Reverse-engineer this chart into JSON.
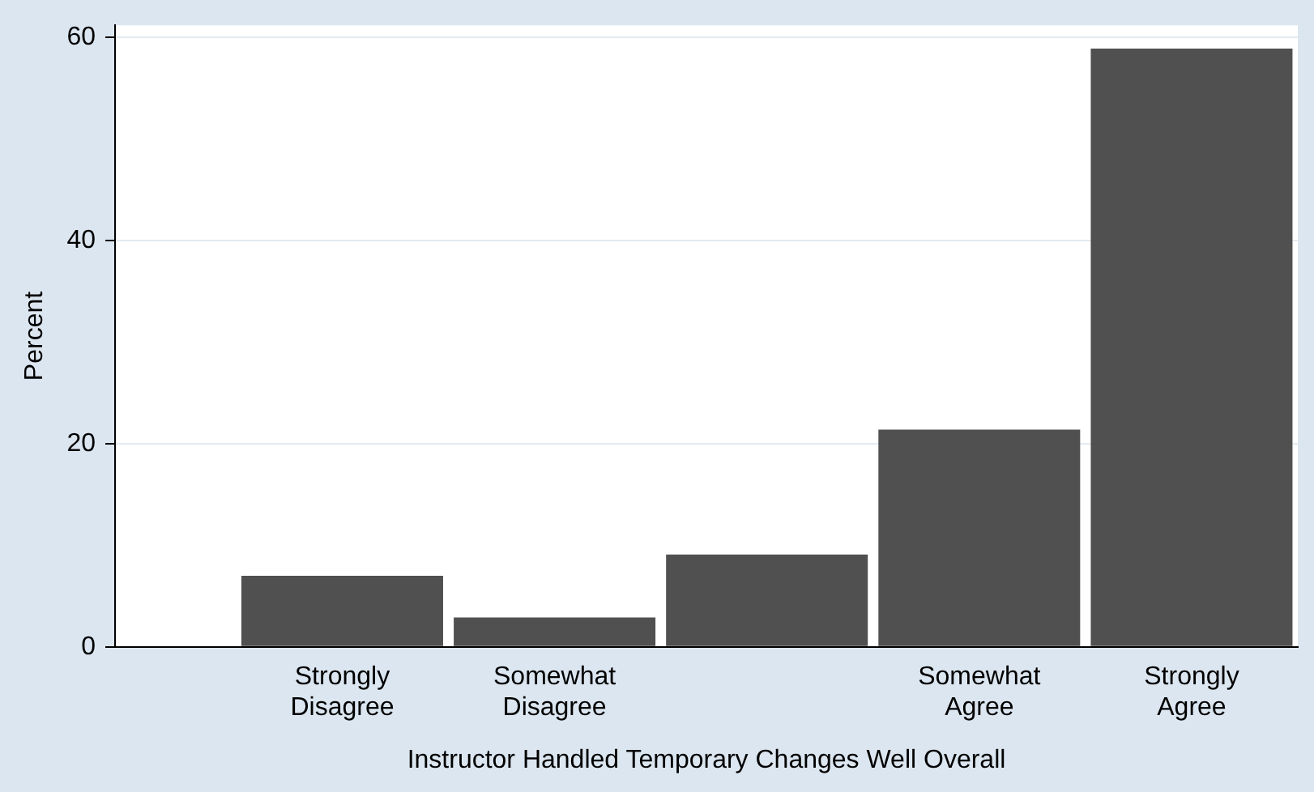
{
  "chart_data": {
    "type": "bar",
    "xlabel": "Instructor Handled Temporary Changes Well Overall",
    "ylabel": "Percent",
    "categories": [
      "Strongly Disagree",
      "Somewhat Disagree",
      null,
      "Somewhat Agree",
      "Strongly Agree"
    ],
    "values": [
      7.0,
      2.9,
      9.1,
      21.4,
      58.9
    ],
    "color": "#505050",
    "ylim": [
      0,
      61.2
    ],
    "yticks": [
      0,
      20,
      40,
      60
    ],
    "grid": "y",
    "legend": false
  }
}
